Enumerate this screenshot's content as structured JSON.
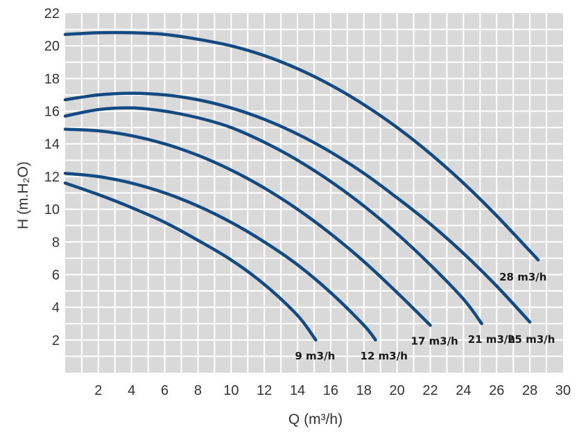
{
  "chart_data": {
    "type": "line",
    "title": "",
    "xlabel": "Q (m³/h)",
    "ylabel": "H (m.H₂O)",
    "xlim": [
      0,
      30
    ],
    "ylim": [
      0,
      22
    ],
    "x_ticks": [
      "2",
      "4",
      "6",
      "8",
      "10",
      "12",
      "14",
      "16",
      "18",
      "20",
      "22",
      "24",
      "26",
      "28",
      "30"
    ],
    "y_ticks": [
      "2",
      "4",
      "6",
      "8",
      "10",
      "12",
      "14",
      "16",
      "18",
      "20",
      "22"
    ],
    "grid": true,
    "legend": "none",
    "colors": {
      "background": "#d9d9d9",
      "grid": "#ffffff",
      "curve": "#144a82",
      "text": "#333333"
    },
    "series": [
      {
        "name": "9 m3/h",
        "x": [
          0,
          2,
          4,
          6,
          8,
          10,
          12,
          14,
          15.1
        ],
        "y": [
          11.6,
          10.9,
          10.1,
          9.2,
          8.1,
          6.9,
          5.4,
          3.5,
          2.0
        ]
      },
      {
        "name": "12 m3/h",
        "x": [
          0,
          2,
          4,
          6,
          8,
          10,
          12,
          14,
          16,
          18,
          18.7
        ],
        "y": [
          12.2,
          12.0,
          11.6,
          11.0,
          10.2,
          9.2,
          8.0,
          6.6,
          4.9,
          2.9,
          2.0
        ]
      },
      {
        "name": "17 m3/h",
        "x": [
          0,
          2,
          4,
          6,
          8,
          10,
          12,
          14,
          16,
          18,
          20,
          22.0
        ],
        "y": [
          14.9,
          14.8,
          14.5,
          14.0,
          13.3,
          12.4,
          11.3,
          10.0,
          8.5,
          6.8,
          4.9,
          2.9
        ]
      },
      {
        "name": "21 m3/h",
        "x": [
          0,
          2,
          4,
          6,
          8,
          10,
          12,
          14,
          16,
          18,
          20,
          22,
          24,
          25.1
        ],
        "y": [
          15.7,
          16.1,
          16.2,
          16.0,
          15.6,
          15.0,
          14.1,
          13.0,
          11.7,
          10.2,
          8.5,
          6.6,
          4.5,
          3.0
        ]
      },
      {
        "name": "25 m3/h",
        "x": [
          0,
          2,
          4,
          6,
          8,
          10,
          12,
          14,
          16,
          18,
          20,
          22,
          24,
          26,
          28.0
        ],
        "y": [
          16.7,
          17.0,
          17.1,
          17.0,
          16.7,
          16.2,
          15.5,
          14.6,
          13.5,
          12.2,
          10.7,
          9.1,
          7.3,
          5.3,
          3.1
        ]
      },
      {
        "name": "28 m3/h",
        "x": [
          0,
          2,
          4,
          6,
          8,
          10,
          12,
          14,
          16,
          18,
          20,
          22,
          24,
          26,
          28.5
        ],
        "y": [
          20.7,
          20.8,
          20.8,
          20.7,
          20.4,
          20.0,
          19.4,
          18.6,
          17.6,
          16.4,
          15.0,
          13.4,
          11.6,
          9.6,
          6.9
        ]
      }
    ],
    "annotations": [
      "9 m3/h",
      "12 m3/h",
      "17 m3/h",
      "21 m3/h",
      "25 m3/h",
      "28 m3/h"
    ]
  }
}
